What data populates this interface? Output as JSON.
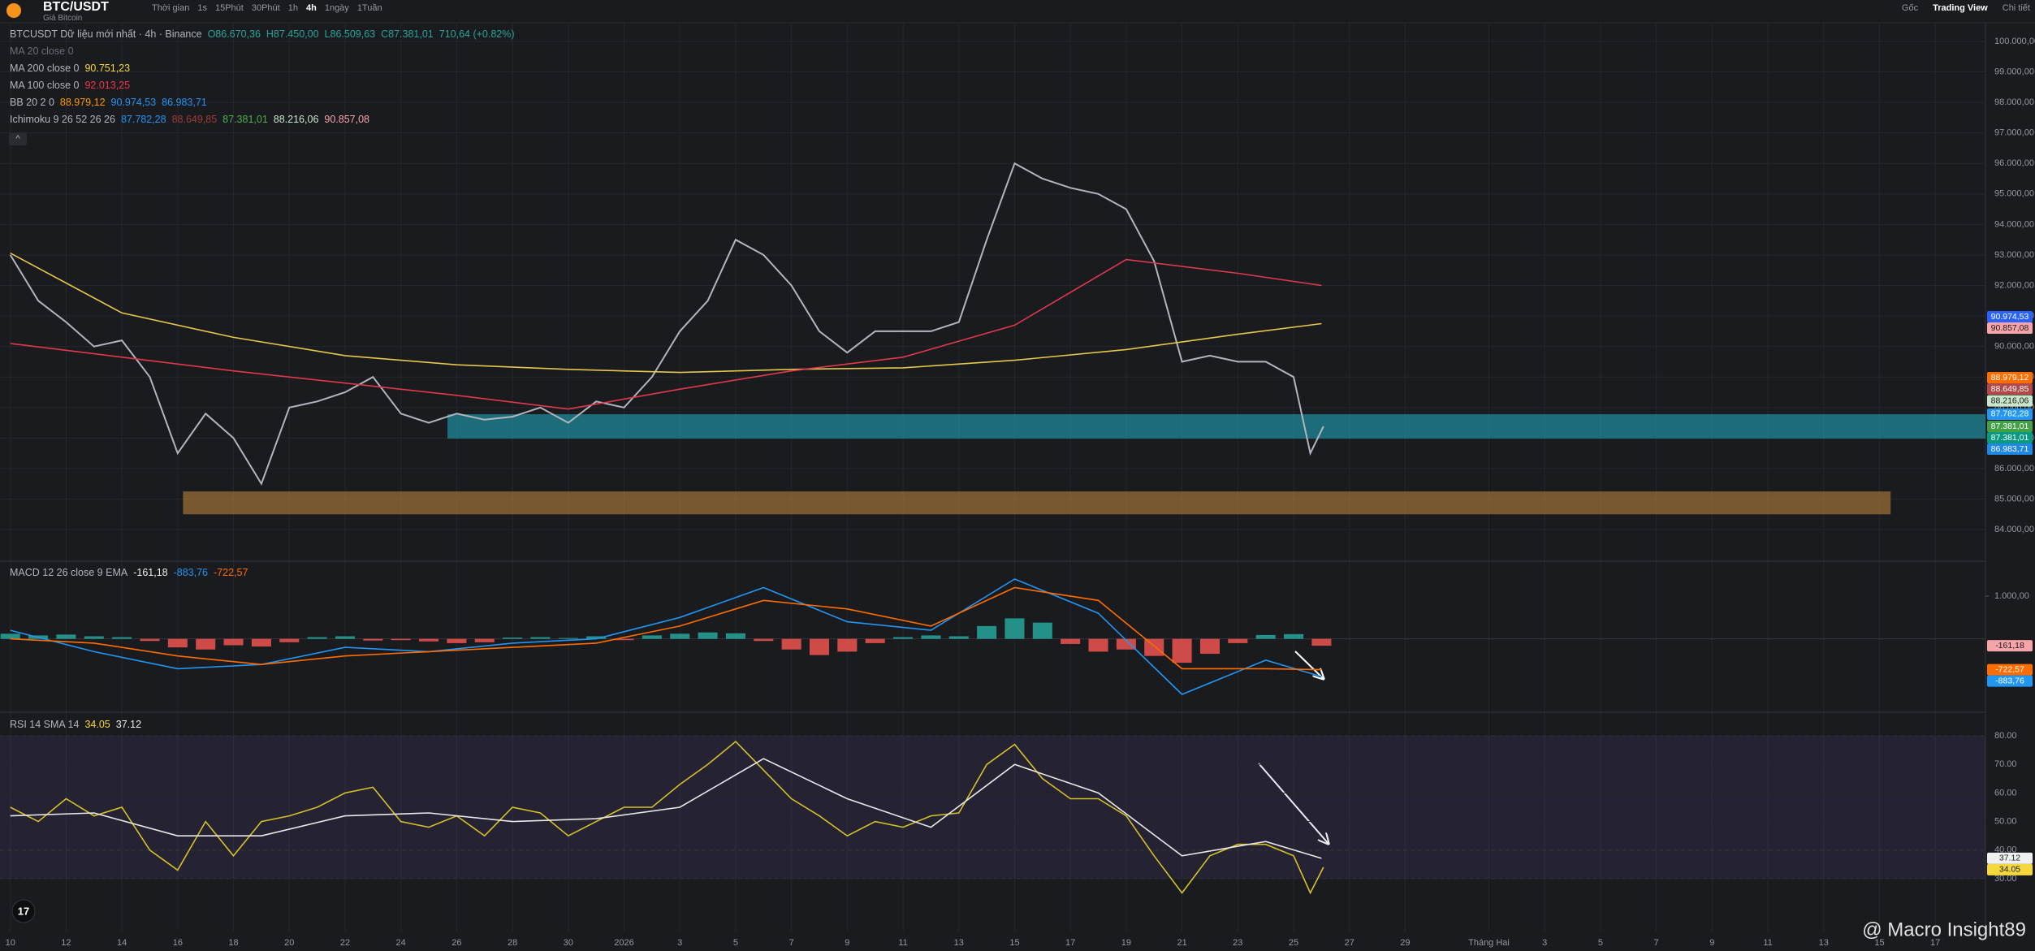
{
  "header": {
    "symbol": "BTC/USDT",
    "subtitle": "Giá Bitcoin",
    "toolbar": [
      "Thời gian",
      "1s",
      "15Phút",
      "30Phút",
      "1h",
      "4h",
      "1ngày",
      "1Tuần"
    ],
    "right": [
      "Gốc",
      "Trading View",
      "Chi tiết"
    ]
  },
  "watermark": "@ Macro Insight89",
  "chart_data": [
    {
      "type": "line",
      "legend": [
        {
          "text": "BTCUSDT Dữ liệu mới nhất · 4h · Binance",
          "color": "#b2b5be",
          "readouts": [
            {
              "text": "O86.670,36",
              "color": "#26a69a"
            },
            {
              "text": "H87.450,00",
              "color": "#26a69a"
            },
            {
              "text": "L86.509,63",
              "color": "#26a69a"
            },
            {
              "text": "C87.381,01",
              "color": "#26a69a"
            },
            {
              "text": "710,64 (+0.82%)",
              "color": "#26a69a"
            }
          ]
        },
        {
          "text": "MA 20 close 0",
          "color": "#6a6d78",
          "readouts": []
        },
        {
          "text": "MA 200 close 0",
          "color": "#b2b5be",
          "readouts": [
            {
              "text": "90.751,23",
              "color": "#f5d83b"
            }
          ]
        },
        {
          "text": "MA 100 close 0",
          "color": "#b2b5be",
          "readouts": [
            {
              "text": "92.013,25",
              "color": "#f23645"
            }
          ]
        },
        {
          "text": "BB 20 2 0",
          "color": "#b2b5be",
          "readouts": [
            {
              "text": "88.979,12",
              "color": "#ff9800"
            },
            {
              "text": "90.974,53",
              "color": "#2196f3"
            },
            {
              "text": "86.983,71",
              "color": "#2196f3"
            }
          ]
        },
        {
          "text": "Ichimoku 9 26 52 26 26",
          "color": "#b2b5be",
          "readouts": [
            {
              "text": "87.782,28",
              "color": "#2196f3"
            },
            {
              "text": "88.649,85",
              "color": "#a03a3a"
            },
            {
              "text": "87.381,01",
              "color": "#4caf50"
            },
            {
              "text": "88.216,06",
              "color": "#c8e6c9"
            },
            {
              "text": "90.857,08",
              "color": "#f7a4a9"
            }
          ]
        }
      ],
      "x": [
        0,
        1,
        2,
        3,
        4,
        5,
        6,
        7,
        8,
        9,
        10,
        11,
        12,
        13,
        14,
        15,
        16,
        17,
        18,
        19,
        20,
        21,
        22,
        23,
        24,
        25,
        26,
        27,
        28,
        29,
        30,
        31,
        32,
        33,
        34,
        35,
        36,
        37,
        38,
        39,
        40,
        41,
        42,
        43,
        44,
        45,
        46,
        46.6,
        47.07
      ],
      "series": [
        {
          "color": "#b2b5be",
          "values": [
            93000,
            91500,
            90800,
            90000,
            90200,
            89000,
            86500,
            87800,
            87000,
            85500,
            88000,
            88200,
            88500,
            89000,
            87800,
            87500,
            87800,
            87600,
            87700,
            88000,
            87500,
            88200,
            88000,
            89000,
            90500,
            91500,
            93500,
            93000,
            92000,
            90500,
            89800,
            90500,
            90500,
            90500,
            90800,
            93500,
            96000,
            95500,
            95200,
            95000,
            94500,
            92800,
            89500,
            89700,
            89500,
            89500,
            89000,
            86500,
            87381.01
          ]
        },
        {
          "color": "#e6c84a",
          "x": [
            0,
            4,
            8,
            12,
            16,
            20,
            24,
            28,
            32,
            36,
            40,
            44,
            47
          ],
          "values": [
            93060,
            91100,
            90300,
            89700,
            89400,
            89250,
            89150,
            89250,
            89300,
            89550,
            89900,
            90400,
            90750
          ]
        },
        {
          "color": "#e0394c",
          "x": [
            0,
            4,
            8,
            12,
            16,
            20,
            24,
            28,
            32,
            36,
            40,
            44,
            47
          ],
          "values": [
            90100,
            89650,
            89200,
            88800,
            88400,
            87950,
            88600,
            89200,
            89650,
            90700,
            92850,
            92400,
            92000
          ]
        }
      ],
      "zones": [
        {
          "color": "#1fa3b8",
          "xlim": [
            15.67,
            70.8
          ],
          "ylim": [
            86980,
            87780
          ]
        },
        {
          "color": "#b7823c",
          "xlim": [
            6.19,
            67.4
          ],
          "ylim": [
            84500,
            85250
          ]
        }
      ],
      "xlim": [
        -0.37,
        70.8
      ],
      "ylim": [
        82990,
        100585
      ],
      "yticks": [
        {
          "value": 84000,
          "label": "84.000,00"
        },
        {
          "value": 85000,
          "label": "85.000,00"
        },
        {
          "value": 86000,
          "label": "86.000,00"
        },
        {
          "value": 87000,
          "label": "87.000,00"
        },
        {
          "value": 88000,
          "label": "88.000,00"
        },
        {
          "value": 89000,
          "label": "89.000,00"
        },
        {
          "value": 90000,
          "label": "90.000,00"
        },
        {
          "value": 91000,
          "label": "91.000,00"
        },
        {
          "value": 92000,
          "label": "92.000,00"
        },
        {
          "value": 93000,
          "label": "93.000,00"
        },
        {
          "value": 94000,
          "label": "94.000,00"
        },
        {
          "value": 95000,
          "label": "95.000,00"
        },
        {
          "value": 96000,
          "label": "96.000,00"
        },
        {
          "value": 97000,
          "label": "97.000,00"
        },
        {
          "value": 98000,
          "label": "98.000,00"
        },
        {
          "value": 99000,
          "label": "99.000,00"
        },
        {
          "value": 100000,
          "label": "100.000,00"
        }
      ],
      "price_labels": [
        {
          "value": 90974.53,
          "label": "90.974,53",
          "color": "#2962ff",
          "text_color": "#ffffff"
        },
        {
          "value": 90857.08,
          "label": "90.857,08",
          "color": "#f7a4a9",
          "text_color": "#1a1b1f"
        },
        {
          "value": 88979.12,
          "label": "88.979,12",
          "color": "#ff6d00",
          "text_color": "#ffffff"
        },
        {
          "value": 88649.85,
          "label": "88.649,85",
          "color": "#b24848",
          "text_color": "#ffffff"
        },
        {
          "value": 88216.06,
          "label": "88.216,06",
          "color": "#c8e6c9",
          "text_color": "#1a1b1f"
        },
        {
          "value": 87782.28,
          "label": "87.782,28",
          "color": "#2196f3",
          "text_color": "#ffffff"
        },
        {
          "value": 87381.01,
          "label": "87.381,01",
          "color": "#43a047",
          "text_color": "#ffffff"
        },
        {
          "value": 87381.01,
          "label": "87.381,01",
          "color": "#089981",
          "text_color": "#ffffff"
        },
        {
          "value": 86983.71,
          "label": "86.983,71",
          "color": "#1e88e5",
          "text_color": "#ffffff"
        }
      ],
      "grid": true
    },
    {
      "type": "bar",
      "legend": [
        {
          "text": "MACD 12 26 close 9 EMA",
          "color": "#b2b5be",
          "readouts": [
            {
              "text": "-161,18",
              "color": "#f0f0f0"
            },
            {
              "text": "-883,76",
              "color": "#2196f3"
            },
            {
              "text": "-722,57",
              "color": "#ff6d00"
            }
          ]
        }
      ],
      "x": [
        0,
        1,
        2,
        3,
        4,
        5,
        6,
        7,
        8,
        9,
        10,
        11,
        12,
        13,
        14,
        15,
        16,
        17,
        18,
        19,
        20,
        21,
        22,
        23,
        24,
        25,
        26,
        27,
        28,
        29,
        30,
        31,
        32,
        33,
        34,
        35,
        36,
        37,
        38,
        39,
        40,
        41,
        42,
        43,
        44,
        45,
        46,
        47
      ],
      "values": [
        120,
        80,
        100,
        60,
        40,
        -50,
        -200,
        -250,
        -150,
        -180,
        -80,
        40,
        60,
        -40,
        -30,
        -60,
        -100,
        -80,
        30,
        40,
        20,
        60,
        -30,
        80,
        120,
        150,
        130,
        -50,
        -250,
        -380,
        -300,
        -100,
        40,
        80,
        60,
        300,
        480,
        380,
        -120,
        -300,
        -250,
        -400,
        -560,
        -350,
        -100,
        90,
        110,
        -161.18
      ],
      "colors": {
        "up": "#26a69a",
        "down": "#ef5350"
      },
      "series": [
        {
          "color": "#2196f3",
          "x": [
            0,
            3,
            6,
            9,
            12,
            15,
            18,
            21,
            24,
            27,
            30,
            33,
            36,
            39,
            42,
            45,
            47
          ],
          "values": [
            200,
            -300,
            -700,
            -600,
            -200,
            -300,
            -100,
            0,
            500,
            1200,
            400,
            200,
            1400,
            600,
            -1300,
            -500,
            -883.76
          ]
        },
        {
          "color": "#ff6d00",
          "x": [
            0,
            3,
            6,
            9,
            12,
            15,
            18,
            21,
            24,
            27,
            30,
            33,
            36,
            39,
            42,
            45,
            47
          ],
          "values": [
            0,
            -100,
            -400,
            -600,
            -400,
            -300,
            -200,
            -100,
            300,
            900,
            700,
            300,
            1200,
            900,
            -700,
            -700,
            -722.57
          ]
        }
      ],
      "price_labels": [
        {
          "value": -161.18,
          "label": "-161,18",
          "color": "#f7a4a9",
          "text_color": "#1a1b1f"
        },
        {
          "value": -722.57,
          "label": "-722,57",
          "color": "#ff6d00",
          "text_color": "#ffffff"
        },
        {
          "value": -883.76,
          "label": "-883,76",
          "color": "#2196f3",
          "text_color": "#ffffff"
        }
      ],
      "xlim": [
        -0.37,
        70.8
      ],
      "ylim": [
        -1700,
        1800
      ],
      "yticks": [
        {
          "value": 1000,
          "label": "1.000,00"
        }
      ]
    },
    {
      "type": "line",
      "legend": [
        {
          "text": "RSI 14 SMA 14",
          "color": "#b2b5be",
          "readouts": [
            {
              "text": "34.05",
              "color": "#f5d83b"
            },
            {
              "text": "37.12",
              "color": "#f0f0f0"
            }
          ]
        }
      ],
      "x": [
        0,
        1,
        2,
        3,
        4,
        5,
        6,
        7,
        8,
        9,
        10,
        11,
        12,
        13,
        14,
        15,
        16,
        17,
        18,
        19,
        20,
        21,
        22,
        23,
        24,
        25,
        26,
        27,
        28,
        29,
        30,
        31,
        32,
        33,
        34,
        35,
        36,
        37,
        38,
        39,
        40,
        41,
        42,
        43,
        44,
        45,
        46,
        46.6,
        47.07
      ],
      "series": [
        {
          "color": "#d4c12a",
          "values": [
            55,
            50,
            58,
            52,
            55,
            40,
            33,
            50,
            38,
            50,
            52,
            55,
            60,
            62,
            50,
            48,
            52,
            45,
            55,
            53,
            45,
            50,
            55,
            55,
            63,
            70,
            78,
            68,
            58,
            52,
            45,
            50,
            48,
            52,
            53,
            70,
            77,
            65,
            58,
            58,
            52,
            38,
            25,
            38,
            42,
            42,
            38,
            25,
            34.05
          ]
        },
        {
          "color": "#e8e8e8",
          "x": [
            0,
            3,
            6,
            9,
            12,
            15,
            18,
            21,
            24,
            27,
            30,
            33,
            36,
            39,
            42,
            45,
            47
          ],
          "values": [
            52,
            53,
            45,
            45,
            52,
            53,
            50,
            51,
            55,
            72,
            58,
            48,
            70,
            60,
            38,
            43,
            37.12
          ]
        }
      ],
      "band": [
        30,
        80
      ],
      "band_color": "#7e57c2",
      "hlines": [
        80,
        40,
        30
      ],
      "price_labels": [
        {
          "value": 37.12,
          "label": "37.12",
          "color": "#f0f0f0",
          "text_color": "#1a1b1f"
        },
        {
          "value": 34.05,
          "label": "34.05",
          "color": "#f5d83b",
          "text_color": "#1a1b1f"
        }
      ],
      "xlim": [
        -0.37,
        70.8
      ],
      "ylim": [
        11.5,
        87.7
      ],
      "yticks": [
        {
          "value": 30,
          "label": "30.00"
        },
        {
          "value": 40,
          "label": "40.00"
        },
        {
          "value": 50,
          "label": "50.00"
        },
        {
          "value": 60,
          "label": "60.00"
        },
        {
          "value": 70,
          "label": "70.00"
        },
        {
          "value": 80,
          "label": "80.00"
        }
      ],
      "xticks": [
        {
          "value": 0,
          "label": "10"
        },
        {
          "value": 2,
          "label": "12"
        },
        {
          "value": 4,
          "label": "14"
        },
        {
          "value": 6,
          "label": "16"
        },
        {
          "value": 8,
          "label": "18"
        },
        {
          "value": 10,
          "label": "20"
        },
        {
          "value": 12,
          "label": "22"
        },
        {
          "value": 14,
          "label": "24"
        },
        {
          "value": 16,
          "label": "26"
        },
        {
          "value": 18,
          "label": "28"
        },
        {
          "value": 20,
          "label": "30"
        },
        {
          "value": 22,
          "label": "2026"
        },
        {
          "value": 24,
          "label": "3"
        },
        {
          "value": 26,
          "label": "5"
        },
        {
          "value": 28,
          "label": "7"
        },
        {
          "value": 30,
          "label": "9"
        },
        {
          "value": 32,
          "label": "11"
        },
        {
          "value": 34,
          "label": "13"
        },
        {
          "value": 36,
          "label": "15"
        },
        {
          "value": 38,
          "label": "17"
        },
        {
          "value": 40,
          "label": "19"
        },
        {
          "value": 42,
          "label": "21"
        },
        {
          "value": 44,
          "label": "23"
        },
        {
          "value": 46,
          "label": "25"
        },
        {
          "value": 48,
          "label": "27"
        },
        {
          "value": 50,
          "label": "29"
        },
        {
          "value": 53,
          "label": "Tháng Hai"
        },
        {
          "value": 55,
          "label": "3"
        },
        {
          "value": 57,
          "label": "5"
        },
        {
          "value": 59,
          "label": "7"
        },
        {
          "value": 61,
          "label": "9"
        },
        {
          "value": 63,
          "label": "11"
        },
        {
          "value": 65,
          "label": "13"
        },
        {
          "value": 67,
          "label": "15"
        },
        {
          "value": 69,
          "label": "17"
        }
      ],
      "grid": true
    }
  ]
}
